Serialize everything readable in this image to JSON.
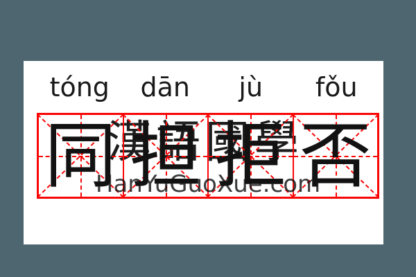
{
  "word": {
    "pinyin": [
      "tóng",
      "dān",
      "jù",
      "fǒu"
    ],
    "characters": [
      "同",
      "担",
      "拒",
      "否"
    ]
  },
  "watermark": {
    "cjk": "漢語國學",
    "site": "HanYuGuoXue.com"
  },
  "colors": {
    "grid_red": "#fa0505",
    "text_black": "#121212",
    "watermark_gray": "#3b3b3b",
    "card_white": "#ffffff",
    "background_slate": "#4d6670"
  }
}
